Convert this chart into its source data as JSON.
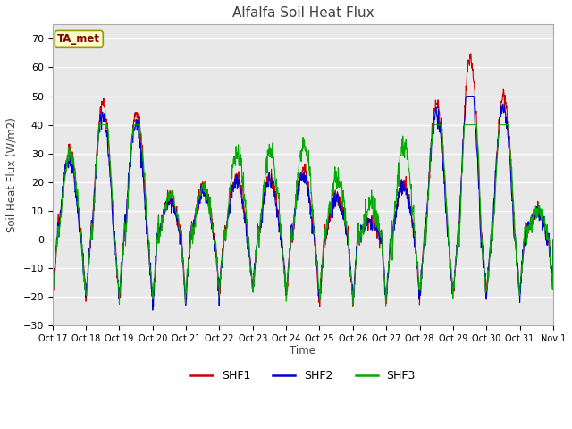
{
  "title": "Alfalfa Soil Heat Flux",
  "ylabel": "Soil Heat Flux (W/m2)",
  "xlabel": "Time",
  "ylim": [
    -30,
    75
  ],
  "yticks": [
    -30,
    -20,
    -10,
    0,
    10,
    20,
    30,
    40,
    50,
    60,
    70
  ],
  "xtick_labels": [
    "Oct 17",
    "Oct 18",
    "Oct 19",
    "Oct 20",
    "Oct 21",
    "Oct 22",
    "Oct 23",
    "Oct 24",
    "Oct 25",
    "Oct 26",
    "Oct 27",
    "Oct 28",
    "Oct 29",
    "Oct 30",
    "Oct 31",
    "Nov 1"
  ],
  "colors": {
    "SHF1": "#cc0000",
    "SHF2": "#0000cc",
    "SHF3": "#00aa00"
  },
  "fig_bg": "#ffffff",
  "plot_bg": "#e8e8e8",
  "annotation_box_color": "#ffffcc",
  "annotation_text_color": "#880000",
  "annotation_edge_color": "#999900"
}
